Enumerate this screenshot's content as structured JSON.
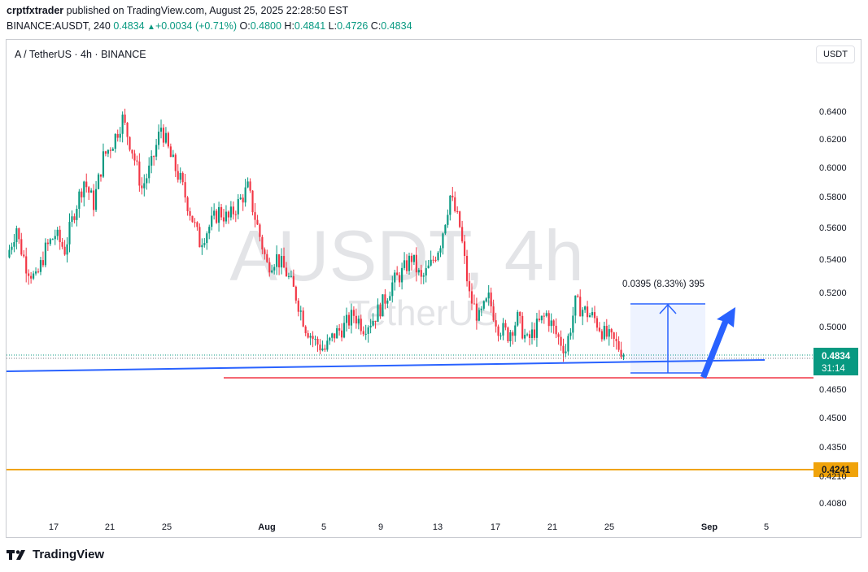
{
  "header": {
    "publisher": "crptfxtrader",
    "published_text": "published on TradingView.com, August 25, 2025 22:28:50 EST"
  },
  "ticker": {
    "symbol": "BINANCE:AUSDT, 240",
    "last": "0.4834",
    "change": "+0.0034 (+0.71%)",
    "o_label": "O:",
    "o": "0.4800",
    "h_label": "H:",
    "h": "0.4841",
    "l_label": "L:",
    "l": "0.4726",
    "c_label": "C:",
    "c": "0.4834"
  },
  "pair_title": "A / TetherUS · 4h · BINANCE",
  "currency_button": "USDT",
  "watermark": {
    "main": "AUSDT, 4h",
    "sub": "TetherUS"
  },
  "footer": {
    "brand": "TradingView"
  },
  "colors": {
    "up": "#089981",
    "down": "#f23645",
    "trendline": "#2962ff",
    "support": "#f23645",
    "level": "#f0a30a",
    "price_tag": "#089981"
  },
  "chart_data": {
    "type": "candlestick",
    "interval": "4h",
    "y_ticks": [
      "0.6400",
      "0.6200",
      "0.6000",
      "0.5800",
      "0.5600",
      "0.5400",
      "0.5200",
      "0.5000",
      "0.4650",
      "0.4500",
      "0.4350",
      "0.4080"
    ],
    "x_ticks": [
      "17",
      "21",
      "25",
      "Aug",
      "5",
      "9",
      "13",
      "17",
      "21",
      "25",
      "Sep",
      "5"
    ],
    "last_price": "0.4834",
    "countdown": "31:14",
    "horizontal_level": "0.4241",
    "partial_tick": "0.4210",
    "measure_label": "0.0395 (8.33%) 395",
    "price_path": [
      [
        0.545,
        0.565
      ],
      [
        0.56,
        0.54
      ],
      [
        0.54,
        0.53
      ],
      [
        0.53,
        0.55
      ],
      [
        0.55,
        0.56
      ],
      [
        0.56,
        0.55
      ],
      [
        0.55,
        0.575
      ],
      [
        0.575,
        0.595
      ],
      [
        0.595,
        0.58
      ],
      [
        0.58,
        0.61
      ],
      [
        0.61,
        0.62
      ],
      [
        0.62,
        0.635
      ],
      [
        0.635,
        0.615
      ],
      [
        0.615,
        0.59
      ],
      [
        0.59,
        0.605
      ],
      [
        0.605,
        0.63
      ],
      [
        0.63,
        0.61
      ],
      [
        0.61,
        0.595
      ],
      [
        0.595,
        0.575
      ],
      [
        0.575,
        0.555
      ],
      [
        0.555,
        0.565
      ],
      [
        0.565,
        0.575
      ],
      [
        0.575,
        0.57
      ],
      [
        0.57,
        0.58
      ],
      [
        0.58,
        0.59
      ],
      [
        0.59,
        0.565
      ],
      [
        0.565,
        0.54
      ],
      [
        0.54,
        0.545
      ],
      [
        0.545,
        0.535
      ],
      [
        0.535,
        0.52
      ],
      [
        0.52,
        0.5
      ],
      [
        0.5,
        0.49
      ],
      [
        0.49,
        0.485
      ],
      [
        0.485,
        0.495
      ],
      [
        0.495,
        0.5
      ],
      [
        0.5,
        0.508
      ],
      [
        0.508,
        0.5
      ],
      [
        0.5,
        0.505
      ],
      [
        0.505,
        0.515
      ],
      [
        0.515,
        0.528
      ],
      [
        0.528,
        0.535
      ],
      [
        0.535,
        0.545
      ],
      [
        0.545,
        0.53
      ],
      [
        0.53,
        0.54
      ],
      [
        0.54,
        0.555
      ],
      [
        0.555,
        0.585
      ],
      [
        0.585,
        0.565
      ],
      [
        0.565,
        0.52
      ],
      [
        0.52,
        0.505
      ],
      [
        0.505,
        0.518
      ],
      [
        0.518,
        0.5
      ],
      [
        0.5,
        0.495
      ],
      [
        0.495,
        0.505
      ],
      [
        0.505,
        0.49
      ],
      [
        0.49,
        0.5
      ],
      [
        0.5,
        0.508
      ],
      [
        0.508,
        0.495
      ],
      [
        0.495,
        0.485
      ],
      [
        0.485,
        0.515
      ],
      [
        0.515,
        0.51
      ],
      [
        0.51,
        0.505
      ],
      [
        0.505,
        0.495
      ],
      [
        0.495,
        0.49
      ],
      [
        0.49,
        0.4834
      ]
    ]
  }
}
